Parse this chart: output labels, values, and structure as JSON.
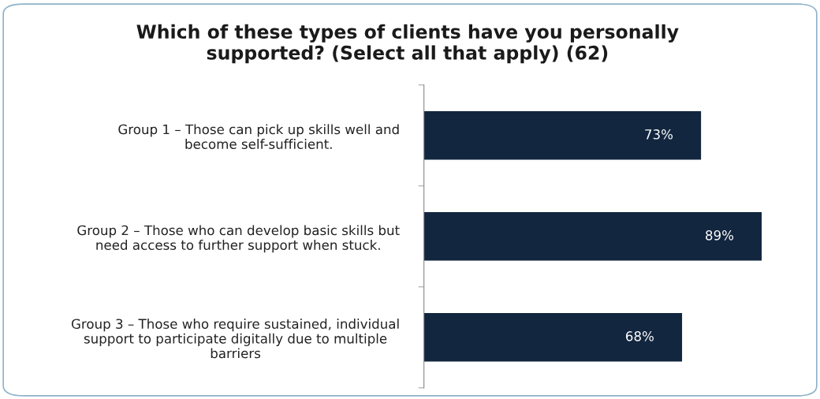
{
  "chart_data": {
    "type": "bar",
    "orientation": "horizontal",
    "title": "Which of these types of clients have you personally\nsupported? (Select all that apply) (62)",
    "categories": [
      "Group 1 – Those can pick up skills well and\nbecome self-sufficient.",
      "Group 2 – Those who can develop basic skills but\nneed access to further support when stuck.",
      "Group 3 – Those who require sustained, individual\nsupport to participate digitally due to multiple\nbarriers"
    ],
    "values": [
      73,
      89,
      68
    ],
    "value_labels": [
      "73%",
      "89%",
      "68%"
    ],
    "color": "#12263f",
    "grid": false,
    "legend": false
  }
}
